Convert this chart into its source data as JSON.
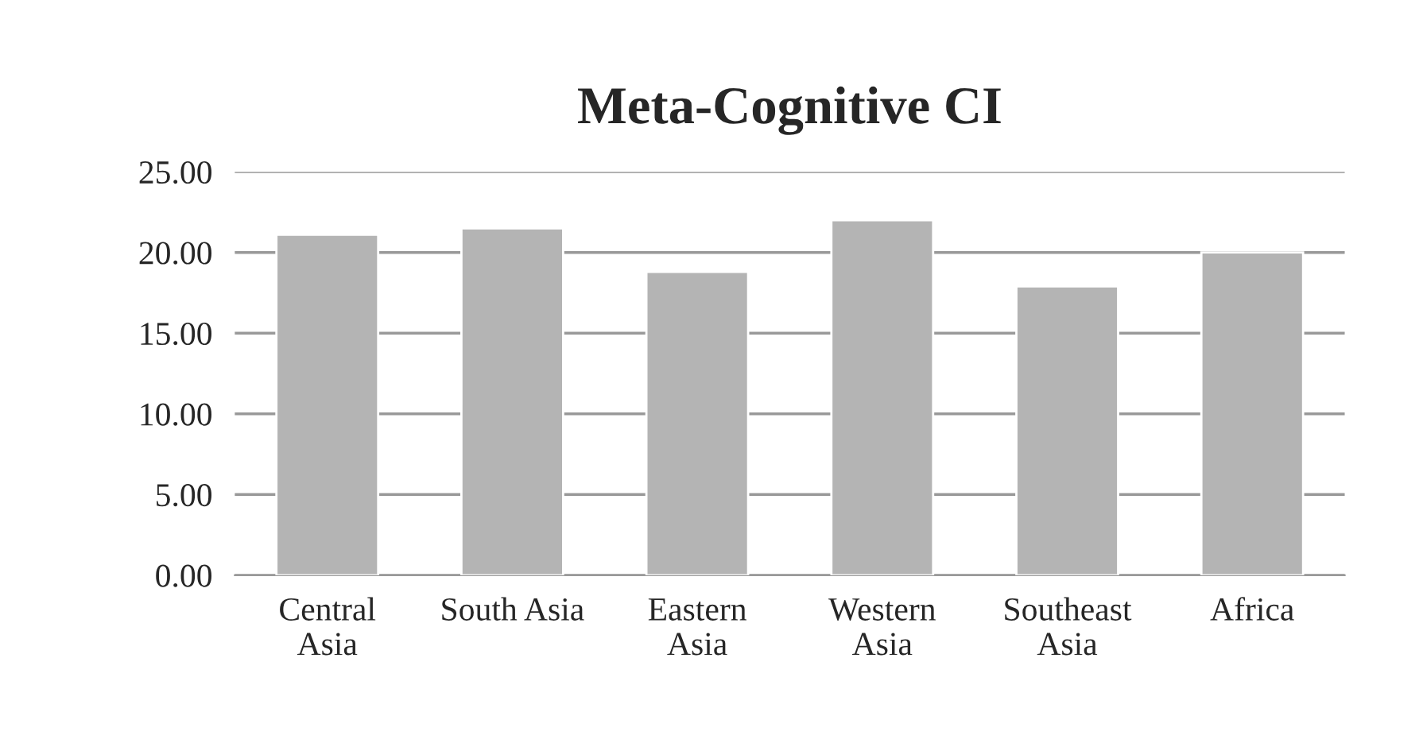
{
  "chart_data": {
    "type": "bar",
    "title": "Meta-Cognitive CI",
    "categories": [
      "Central\nAsia",
      "South Asia",
      "Eastern\nAsia",
      "Western\nAsia",
      "Southeast\nAsia",
      "Africa"
    ],
    "values": [
      21.1,
      21.5,
      18.8,
      22.0,
      17.9,
      20.0
    ],
    "color": "#b4b4b4",
    "ylim": [
      0,
      25
    ],
    "yticks": [
      {
        "value": 0,
        "label": "0.00"
      },
      {
        "value": 5,
        "label": "5.00"
      },
      {
        "value": 10,
        "label": "10.00"
      },
      {
        "value": 15,
        "label": "15.00"
      },
      {
        "value": 20,
        "label": "20.00"
      },
      {
        "value": 25,
        "label": "25.00"
      }
    ],
    "grid": "y"
  }
}
